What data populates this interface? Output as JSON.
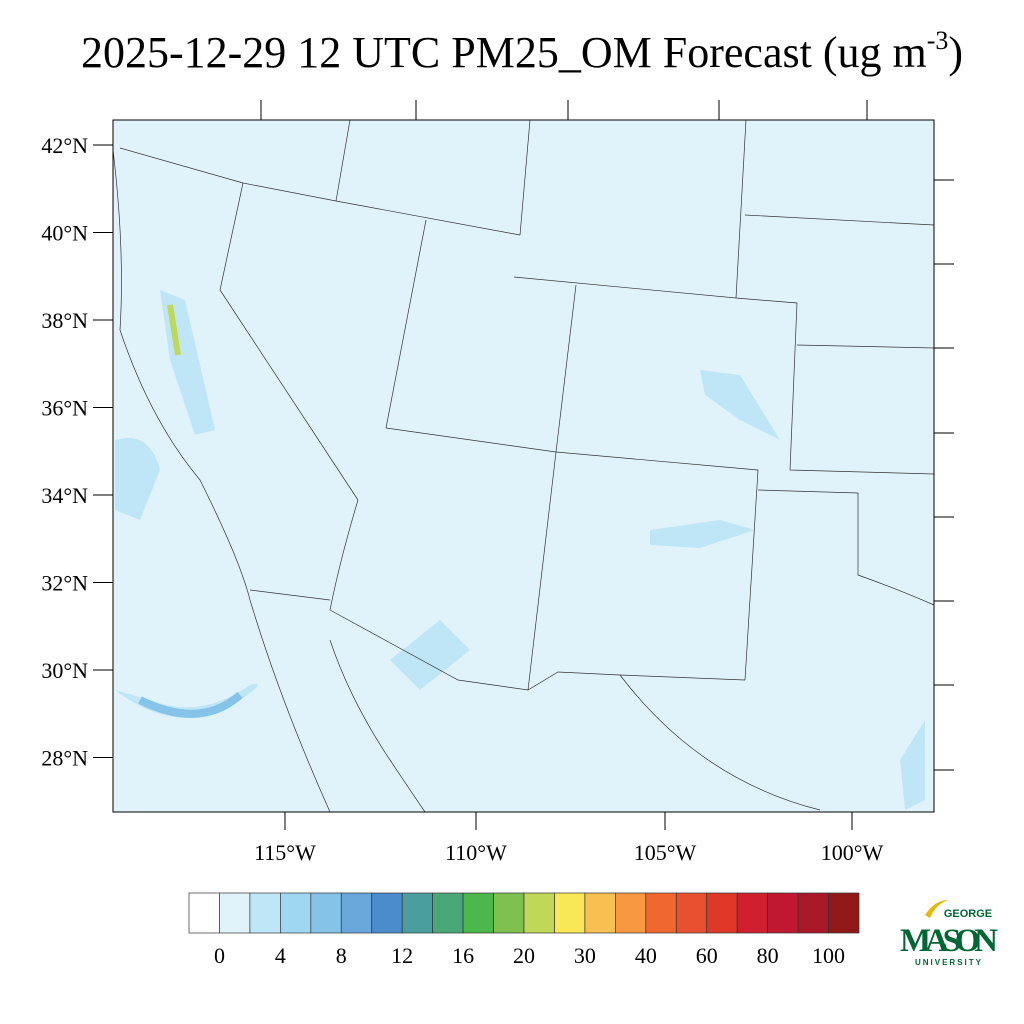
{
  "header": {
    "title_main": "2025-12-29 12 UTC PM25_OM Forecast (ug m",
    "title_superscript": "-3",
    "title_end": ")"
  },
  "map": {
    "lat_labels": [
      "42°N",
      "40°N",
      "38°N",
      "36°N",
      "34°N",
      "32°N",
      "30°N",
      "28°N"
    ],
    "lon_labels": [
      "115°W",
      "110°W",
      "105°W",
      "100°W"
    ]
  },
  "colorbar": {
    "colors": [
      "#ffffff",
      "#e0f3fb",
      "#bfe6f7",
      "#9fd7f3",
      "#85c3e8",
      "#6aa8dc",
      "#4a8ccc",
      "#4a9e9e",
      "#4aa878",
      "#4ab84a",
      "#80c050",
      "#c0d858",
      "#f8e858",
      "#f8c050",
      "#f89840",
      "#f06830",
      "#e85030",
      "#e03828",
      "#d02030",
      "#c01830",
      "#a81828",
      "#901818"
    ],
    "labels": [
      0,
      4,
      8,
      12,
      16,
      20,
      30,
      40,
      60,
      80,
      100
    ]
  },
  "logo": {
    "top": "GEORGE",
    "main": "MASON",
    "bottom": "UNIVERSITY"
  }
}
